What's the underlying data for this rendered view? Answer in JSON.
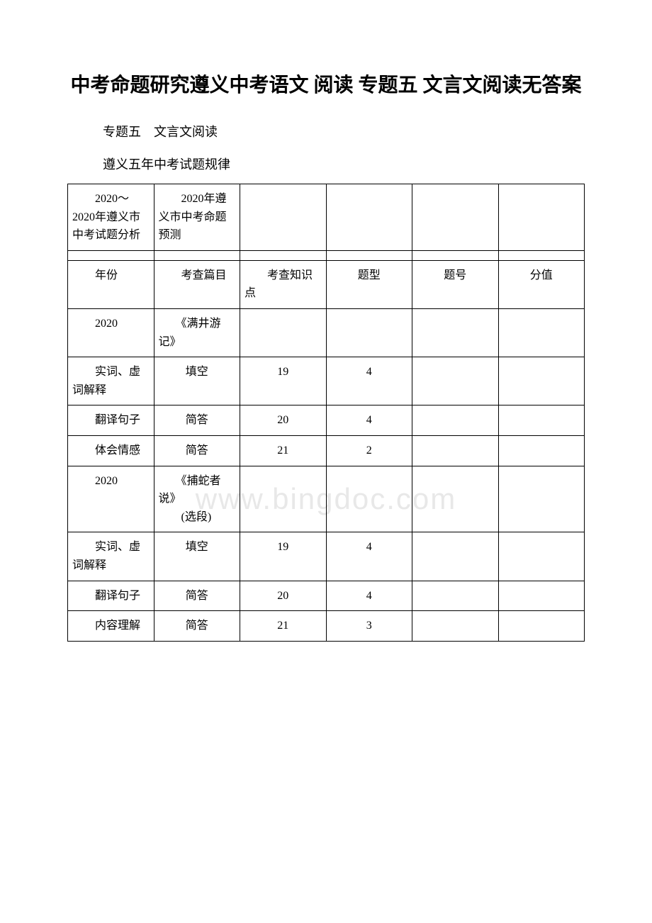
{
  "title": "中考命题研究遵义中考语文 阅读 专题五 文言文阅读无答案",
  "subtitle": "专题五　文言文阅读",
  "section_label": "遵义五年中考试题规律",
  "watermark": "www.bingdoc.com",
  "table": {
    "border_color": "#000000",
    "font_size": 16,
    "rows": [
      {
        "cells": [
          {
            "text": "　　2020～2020年遵义市中考试题分析",
            "class": ""
          },
          {
            "text": "　　2020年遵义市中考命题预测",
            "class": ""
          },
          {
            "text": "",
            "class": ""
          },
          {
            "text": "",
            "class": ""
          },
          {
            "text": "",
            "class": ""
          },
          {
            "text": "",
            "class": ""
          }
        ]
      },
      {
        "thin": true,
        "cells": [
          {
            "text": ""
          },
          {
            "text": ""
          },
          {
            "text": ""
          },
          {
            "text": ""
          },
          {
            "text": ""
          },
          {
            "text": ""
          }
        ]
      },
      {
        "cells": [
          {
            "text": "年份",
            "class": "cell-indent"
          },
          {
            "text": "　　考查篇目",
            "class": ""
          },
          {
            "text": "　　考查知识点",
            "class": ""
          },
          {
            "text": "题型",
            "class": "center"
          },
          {
            "text": "题号",
            "class": "center"
          },
          {
            "text": "分值",
            "class": "center"
          }
        ]
      },
      {
        "cells": [
          {
            "text": "2020",
            "class": "cell-indent"
          },
          {
            "text": "　　《满井游记》",
            "class": ""
          },
          {
            "text": "",
            "class": ""
          },
          {
            "text": "",
            "class": ""
          },
          {
            "text": "",
            "class": ""
          },
          {
            "text": "",
            "class": ""
          }
        ]
      },
      {
        "cells": [
          {
            "text": "　　实词、虚词解释",
            "class": ""
          },
          {
            "text": "填空",
            "class": "center"
          },
          {
            "text": "19",
            "class": "center"
          },
          {
            "text": "4",
            "class": "center"
          },
          {
            "text": "",
            "class": ""
          },
          {
            "text": "",
            "class": ""
          }
        ]
      },
      {
        "cells": [
          {
            "text": "　　翻译句子",
            "class": ""
          },
          {
            "text": "简答",
            "class": "center"
          },
          {
            "text": "20",
            "class": "center"
          },
          {
            "text": "4",
            "class": "center"
          },
          {
            "text": "",
            "class": ""
          },
          {
            "text": "",
            "class": ""
          }
        ]
      },
      {
        "cells": [
          {
            "text": "　　体会情感",
            "class": ""
          },
          {
            "text": "简答",
            "class": "center"
          },
          {
            "text": "21",
            "class": "center"
          },
          {
            "text": "2",
            "class": "center"
          },
          {
            "text": "",
            "class": ""
          },
          {
            "text": "",
            "class": ""
          }
        ]
      },
      {
        "cells": [
          {
            "text": "2020",
            "class": "cell-indent"
          },
          {
            "text": "　　《捕蛇者说》\n　　(选段)",
            "class": "",
            "multiline": true
          },
          {
            "text": "",
            "class": ""
          },
          {
            "text": "",
            "class": ""
          },
          {
            "text": "",
            "class": ""
          },
          {
            "text": "",
            "class": ""
          }
        ]
      },
      {
        "cells": [
          {
            "text": "　　实词、虚词解释",
            "class": ""
          },
          {
            "text": "填空",
            "class": "center"
          },
          {
            "text": "19",
            "class": "center"
          },
          {
            "text": "4",
            "class": "center"
          },
          {
            "text": "",
            "class": ""
          },
          {
            "text": "",
            "class": ""
          }
        ]
      },
      {
        "cells": [
          {
            "text": "　　翻译句子",
            "class": ""
          },
          {
            "text": "简答",
            "class": "center"
          },
          {
            "text": "20",
            "class": "center"
          },
          {
            "text": "4",
            "class": "center"
          },
          {
            "text": "",
            "class": ""
          },
          {
            "text": "",
            "class": ""
          }
        ]
      },
      {
        "cells": [
          {
            "text": "　　内容理解",
            "class": ""
          },
          {
            "text": "简答",
            "class": "center"
          },
          {
            "text": "21",
            "class": "center"
          },
          {
            "text": "3",
            "class": "center"
          },
          {
            "text": "",
            "class": ""
          },
          {
            "text": "",
            "class": ""
          }
        ]
      }
    ]
  }
}
